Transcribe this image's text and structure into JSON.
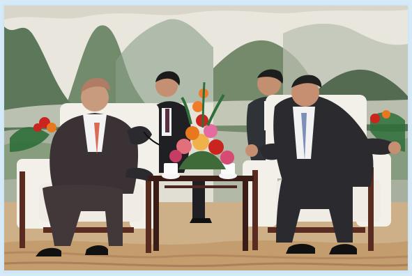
{
  "photo": {
    "subject": "diplomatic-meeting",
    "elements": [
      "mountain-landscape-painting",
      "left-armchair",
      "right-armchair",
      "left-man",
      "right-man",
      "standing-aide-left",
      "standing-aide-right",
      "flower-arrangement",
      "tea-cups",
      "side-table",
      "patterned-carpet"
    ]
  },
  "colors": {
    "frame": "#cfe6f6",
    "mural-sky": "#e8e6dd",
    "mountain-green": "#4d6a4b",
    "chair-white": "#f3f0ea",
    "chair-wood": "#5a2b20",
    "suit-dark": "#2b2a2e",
    "carpet": "#cdb088",
    "flower-red": "#c9241e",
    "flower-orange": "#e8781d",
    "flower-pink": "#e46aa0"
  }
}
